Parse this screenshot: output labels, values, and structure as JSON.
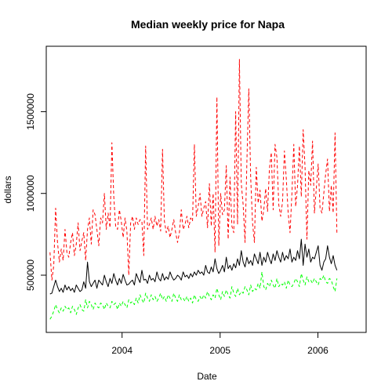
{
  "chart_data": {
    "type": "line",
    "title": "Median weekly price for Napa",
    "xlabel": "Date",
    "ylabel": "dollars",
    "xlim": [
      "2003-03-24",
      "2006-06-30"
    ],
    "ylim": [
      150000,
      1900000
    ],
    "x_ticks": [
      {
        "label": "2004",
        "value": "2004-01-01"
      },
      {
        "label": "2005",
        "value": "2005-01-01"
      },
      {
        "label": "2006",
        "value": "2006-01-01"
      }
    ],
    "y_ticks": [
      {
        "label": "500000",
        "value": 500000
      },
      {
        "label": "1000000",
        "value": 1000000
      },
      {
        "label": "1500000",
        "value": 1500000
      }
    ],
    "grid": false,
    "legend": "none",
    "x_start": "2003-04-07",
    "x_interval": "weekly",
    "series": [
      {
        "color": "#000000",
        "line_style": "solid",
        "values": [
          385000,
          390000,
          430000,
          470000,
          430000,
          400000,
          420000,
          395000,
          440000,
          410000,
          430000,
          405000,
          420000,
          395000,
          440000,
          420000,
          400000,
          410000,
          460000,
          420000,
          580000,
          460000,
          430000,
          450000,
          470000,
          420000,
          470000,
          455000,
          440000,
          500000,
          460000,
          430000,
          480000,
          450000,
          510000,
          470000,
          440000,
          480000,
          450000,
          505000,
          470000,
          440000,
          445000,
          460000,
          470000,
          440000,
          510000,
          480000,
          455000,
          530000,
          470000,
          475000,
          450000,
          500000,
          470000,
          480000,
          460000,
          520000,
          480000,
          465000,
          510000,
          470000,
          490000,
          475000,
          520000,
          490000,
          470000,
          480000,
          500000,
          490000,
          470000,
          520000,
          490000,
          500000,
          480000,
          510000,
          490000,
          520000,
          500000,
          530000,
          510000,
          520000,
          500000,
          560000,
          520000,
          510000,
          550000,
          520000,
          600000,
          540000,
          510000,
          530000,
          560000,
          520000,
          610000,
          540000,
          560000,
          530000,
          570000,
          545000,
          600000,
          560000,
          650000,
          580000,
          550000,
          610000,
          570000,
          590000,
          560000,
          630000,
          600000,
          570000,
          640000,
          560000,
          610000,
          580000,
          640000,
          600000,
          570000,
          630000,
          590000,
          650000,
          610000,
          580000,
          640000,
          590000,
          620000,
          600000,
          660000,
          580000,
          610000,
          590000,
          650000,
          600000,
          720000,
          560000,
          690000,
          610000,
          660000,
          580000,
          610000,
          600000,
          640000,
          680000,
          560000,
          530000,
          580000,
          600000,
          680000,
          610000,
          570000,
          620000,
          560000,
          530000
        ]
      },
      {
        "color": "#ff0000",
        "line_style": "dashed",
        "values": [
          640000,
          470000,
          560000,
          910000,
          700000,
          580000,
          660000,
          590000,
          780000,
          640000,
          610000,
          700000,
          760000,
          620000,
          690000,
          820000,
          650000,
          710000,
          760000,
          590000,
          780000,
          850000,
          690000,
          900000,
          870000,
          780000,
          680000,
          850000,
          820000,
          1000000,
          780000,
          880000,
          790000,
          1310000,
          980000,
          800000,
          780000,
          900000,
          830000,
          730000,
          850000,
          770000,
          500000,
          820000,
          860000,
          780000,
          850000,
          810000,
          840000,
          830000,
          620000,
          1290000,
          780000,
          810000,
          850000,
          780000,
          860000,
          800000,
          840000,
          770000,
          1270000,
          830000,
          760000,
          800000,
          730000,
          780000,
          840000,
          760000,
          700000,
          760000,
          900000,
          780000,
          810000,
          860000,
          790000,
          850000,
          830000,
          1300000,
          860000,
          920000,
          1000000,
          860000,
          910000,
          950000,
          790000,
          1060000,
          800000,
          1000000,
          640000,
          1590000,
          680000,
          1000000,
          870000,
          900000,
          1170000,
          720000,
          1100000,
          800000,
          760000,
          1500000,
          810000,
          1820000,
          1060000,
          930000,
          700000,
          1200000,
          1640000,
          1100000,
          820000,
          700000,
          1160000,
          940000,
          1020000,
          830000,
          900000,
          1030000,
          890000,
          1150000,
          1250000,
          900000,
          1300000,
          1220000,
          930000,
          860000,
          950000,
          1260000,
          1090000,
          880000,
          760000,
          1000000,
          1300000,
          920000,
          1050000,
          1290000,
          980000,
          1390000,
          1160000,
          720000,
          1140000,
          1050000,
          1320000,
          880000,
          1030000,
          1180000,
          910000,
          880000,
          1000000,
          1120000,
          1210000,
          890000,
          1050000,
          880000,
          1370000,
          750000
        ]
      },
      {
        "color": "#00ff00",
        "line_style": "dashed",
        "values": [
          230000,
          250000,
          280000,
          320000,
          290000,
          270000,
          300000,
          280000,
          310000,
          290000,
          300000,
          270000,
          310000,
          290000,
          260000,
          300000,
          320000,
          290000,
          280000,
          350000,
          300000,
          340000,
          320000,
          290000,
          330000,
          310000,
          300000,
          330000,
          320000,
          290000,
          330000,
          310000,
          300000,
          340000,
          320000,
          330000,
          290000,
          330000,
          310000,
          340000,
          320000,
          300000,
          350000,
          330000,
          340000,
          320000,
          360000,
          330000,
          380000,
          350000,
          330000,
          390000,
          360000,
          340000,
          380000,
          350000,
          370000,
          340000,
          360000,
          390000,
          350000,
          370000,
          340000,
          380000,
          360000,
          340000,
          390000,
          360000,
          340000,
          380000,
          350000,
          360000,
          340000,
          370000,
          340000,
          360000,
          330000,
          380000,
          350000,
          340000,
          370000,
          350000,
          380000,
          360000,
          400000,
          370000,
          350000,
          380000,
          360000,
          420000,
          380000,
          350000,
          400000,
          370000,
          410000,
          380000,
          360000,
          430000,
          390000,
          370000,
          420000,
          380000,
          400000,
          390000,
          430000,
          410000,
          380000,
          440000,
          400000,
          420000,
          410000,
          450000,
          420000,
          520000,
          430000,
          410000,
          450000,
          430000,
          470000,
          440000,
          420000,
          480000,
          430000,
          450000,
          440000,
          460000,
          420000,
          470000,
          440000,
          430000,
          450000,
          480000,
          460000,
          430000,
          510000,
          470000,
          440000,
          490000,
          460000,
          470000,
          450000,
          480000,
          460000,
          440000,
          480000,
          470000,
          500000,
          460000,
          450000,
          480000,
          470000,
          430000,
          400000,
          480000
        ]
      }
    ]
  }
}
